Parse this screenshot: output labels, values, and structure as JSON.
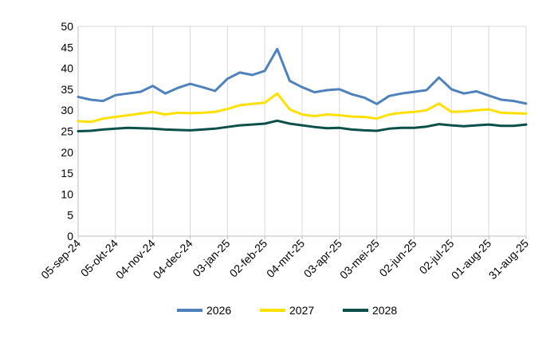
{
  "chart_data": {
    "type": "line",
    "title": "",
    "xlabel": "",
    "ylabel": "",
    "ylim": [
      0,
      50
    ],
    "yticks": [
      0,
      5,
      10,
      15,
      20,
      25,
      30,
      35,
      40,
      45,
      50
    ],
    "grid": {
      "horizontal": false,
      "vertical": true
    },
    "legend_position": "bottom",
    "x_tick_labels": [
      "05-sep-24",
      "05-okt-24",
      "04-nov-24",
      "04-dec-24",
      "03-jan-25",
      "02-feb-25",
      "04-mrt-25",
      "03-apr-25",
      "03-mei-25",
      "02-jun-25",
      "02-jul-25",
      "01-aug-25",
      "31-aug-25"
    ],
    "x": [
      "05-sep-24",
      "15-sep-24",
      "25-sep-24",
      "05-okt-24",
      "15-okt-24",
      "25-okt-24",
      "04-nov-24",
      "14-nov-24",
      "24-nov-24",
      "04-dec-24",
      "14-dec-24",
      "24-dec-24",
      "03-jan-25",
      "13-jan-25",
      "23-jan-25",
      "02-feb-25",
      "12-feb-25",
      "22-feb-25",
      "04-mrt-25",
      "14-mrt-25",
      "24-mrt-25",
      "03-apr-25",
      "13-apr-25",
      "23-apr-25",
      "03-mei-25",
      "13-mei-25",
      "23-mei-25",
      "02-jun-25",
      "12-jun-25",
      "22-jun-25",
      "02-jul-25",
      "12-jul-25",
      "22-jul-25",
      "01-aug-25",
      "11-aug-25",
      "21-aug-25",
      "31-aug-25"
    ],
    "series": [
      {
        "name": "2026",
        "color": "#4f81bd",
        "values": [
          33.2,
          32.5,
          32.2,
          33.6,
          34.0,
          34.4,
          35.8,
          34.0,
          35.3,
          36.3,
          35.5,
          34.6,
          37.5,
          39.0,
          38.4,
          39.4,
          44.6,
          37.0,
          35.5,
          34.3,
          34.8,
          35.0,
          33.8,
          33.0,
          31.5,
          33.4,
          34.0,
          34.4,
          34.8,
          37.8,
          35.0,
          34.0,
          34.5,
          33.5,
          32.5,
          32.2,
          31.6
        ]
      },
      {
        "name": "2027",
        "color": "#ffe000",
        "values": [
          27.4,
          27.2,
          28.0,
          28.4,
          28.8,
          29.2,
          29.6,
          29.0,
          29.4,
          29.3,
          29.4,
          29.6,
          30.3,
          31.2,
          31.5,
          31.8,
          34.0,
          30.2,
          29.0,
          28.6,
          29.0,
          28.8,
          28.5,
          28.4,
          28.0,
          29.0,
          29.4,
          29.6,
          30.0,
          31.6,
          29.6,
          29.7,
          30.0,
          30.2,
          29.4,
          29.3,
          29.2
        ]
      },
      {
        "name": "2028",
        "color": "#0b4f4a",
        "values": [
          25.0,
          25.1,
          25.4,
          25.6,
          25.8,
          25.7,
          25.6,
          25.4,
          25.3,
          25.2,
          25.4,
          25.6,
          26.0,
          26.4,
          26.6,
          26.8,
          27.5,
          26.8,
          26.4,
          26.0,
          25.7,
          25.8,
          25.4,
          25.2,
          25.1,
          25.6,
          25.8,
          25.8,
          26.1,
          26.7,
          26.4,
          26.2,
          26.4,
          26.6,
          26.3,
          26.3,
          26.6
        ]
      }
    ]
  }
}
